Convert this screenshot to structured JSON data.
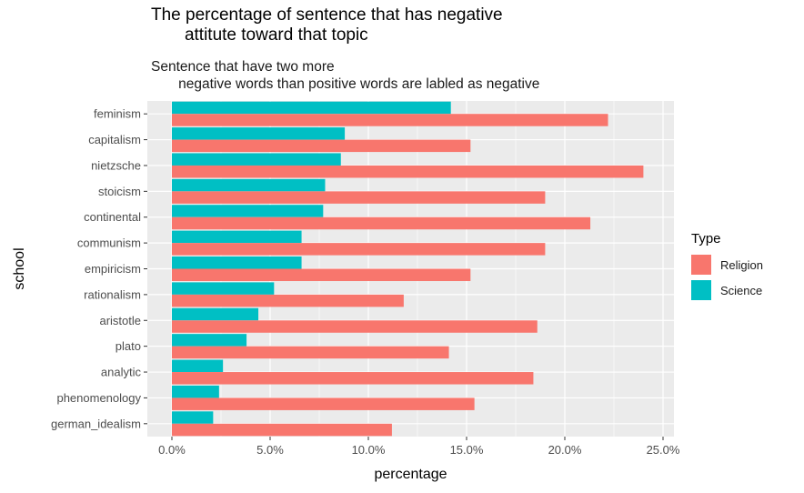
{
  "chart_data": {
    "type": "bar",
    "orientation": "horizontal",
    "title": "The percentage of sentence that has negative\n       attitute toward that topic",
    "subtitle": "Sentence that have two more\n       negative words than positive words are labled as negative",
    "xlabel": "percentage",
    "ylabel": "school",
    "xlim": [
      0,
      25
    ],
    "xticks": [
      "0.0%",
      "5.0%",
      "10.0%",
      "15.0%",
      "20.0%",
      "25.0%"
    ],
    "categories": [
      "feminism",
      "capitalism",
      "nietzsche",
      "stoicism",
      "continental",
      "communism",
      "empiricism",
      "rationalism",
      "aristotle",
      "plato",
      "analytic",
      "phenomenology",
      "german_idealism"
    ],
    "series": [
      {
        "name": "Science",
        "color": "#00BFC4",
        "values": [
          14.2,
          8.8,
          8.6,
          7.8,
          7.7,
          6.6,
          6.6,
          5.2,
          4.4,
          3.8,
          2.6,
          2.4,
          2.1
        ]
      },
      {
        "name": "Religion",
        "color": "#F8766D",
        "values": [
          22.2,
          15.2,
          24.0,
          19.0,
          21.3,
          19.0,
          15.2,
          11.8,
          18.6,
          14.1,
          18.4,
          15.4,
          11.2
        ]
      }
    ],
    "legend": {
      "title": "Type",
      "position": "right",
      "items": [
        {
          "label": "Religion",
          "color": "#F8766D"
        },
        {
          "label": "Science",
          "color": "#00BFC4"
        }
      ]
    },
    "grid": true,
    "panel_background": "#EBEBEB"
  }
}
